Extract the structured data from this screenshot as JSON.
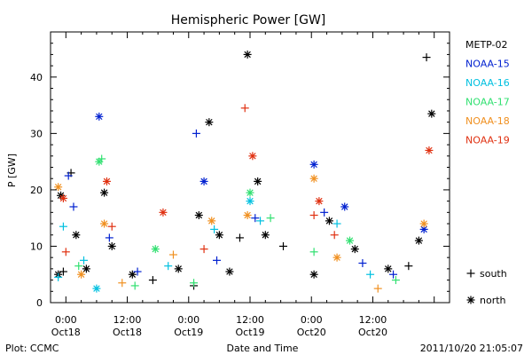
{
  "chart_data": {
    "type": "scatter",
    "title": "Hemispheric Power [GW]",
    "ylabel": "P [GW]",
    "xlabel": "Date and Time",
    "ylim": [
      0,
      48
    ],
    "xlim": [
      "2011-10-17T21:00",
      "2011-10-21T03:00"
    ],
    "y_ticks": [
      0,
      10,
      20,
      30,
      40
    ],
    "x_ticks": [
      {
        "x": "2011-10-18T00:00",
        "time": "0:00",
        "date": "Oct18"
      },
      {
        "x": "2011-10-18T12:00",
        "time": "12:00",
        "date": "Oct18"
      },
      {
        "x": "2011-10-19T00:00",
        "time": "0:00",
        "date": "Oct19"
      },
      {
        "x": "2011-10-19T12:00",
        "time": "12:00",
        "date": "Oct19"
      },
      {
        "x": "2011-10-20T00:00",
        "time": "0:00",
        "date": "Oct20"
      },
      {
        "x": "2011-10-20T12:00",
        "time": "12:00",
        "date": "Oct20"
      }
    ],
    "marker_legend": [
      {
        "symbol": "+",
        "label": "south",
        "marker": "plus"
      },
      {
        "symbol": "*",
        "label": "north",
        "marker": "star"
      }
    ],
    "series": [
      {
        "name": "METP-02",
        "color": "#000000",
        "points": [
          {
            "x": "2011-10-17T22:30",
            "y": 5,
            "m": "star"
          },
          {
            "x": "2011-10-17T23:00",
            "y": 19,
            "m": "star"
          },
          {
            "x": "2011-10-17T23:30",
            "y": 5.5,
            "m": "plus"
          },
          {
            "x": "2011-10-18T01:00",
            "y": 23,
            "m": "plus"
          },
          {
            "x": "2011-10-18T02:00",
            "y": 12,
            "m": "star"
          },
          {
            "x": "2011-10-18T04:00",
            "y": 6,
            "m": "star"
          },
          {
            "x": "2011-10-18T07:30",
            "y": 19.5,
            "m": "star"
          },
          {
            "x": "2011-10-18T09:00",
            "y": 10,
            "m": "star"
          },
          {
            "x": "2011-10-18T13:00",
            "y": 5,
            "m": "star"
          },
          {
            "x": "2011-10-18T17:00",
            "y": 4,
            "m": "plus"
          },
          {
            "x": "2011-10-18T22:00",
            "y": 6,
            "m": "star"
          },
          {
            "x": "2011-10-19T01:00",
            "y": 3,
            "m": "plus"
          },
          {
            "x": "2011-10-19T02:00",
            "y": 15.5,
            "m": "star"
          },
          {
            "x": "2011-10-19T04:00",
            "y": 32,
            "m": "star"
          },
          {
            "x": "2011-10-19T06:00",
            "y": 12,
            "m": "star"
          },
          {
            "x": "2011-10-19T08:00",
            "y": 5.5,
            "m": "star"
          },
          {
            "x": "2011-10-19T10:00",
            "y": 11.5,
            "m": "plus"
          },
          {
            "x": "2011-10-19T11:30",
            "y": 44,
            "m": "star"
          },
          {
            "x": "2011-10-19T13:30",
            "y": 21.5,
            "m": "star"
          },
          {
            "x": "2011-10-19T15:00",
            "y": 12,
            "m": "star"
          },
          {
            "x": "2011-10-19T18:30",
            "y": 10,
            "m": "plus"
          },
          {
            "x": "2011-10-20T00:30",
            "y": 5,
            "m": "star"
          },
          {
            "x": "2011-10-20T03:30",
            "y": 14.5,
            "m": "star"
          },
          {
            "x": "2011-10-20T08:30",
            "y": 9.5,
            "m": "star"
          },
          {
            "x": "2011-10-20T15:00",
            "y": 6,
            "m": "star"
          },
          {
            "x": "2011-10-20T19:00",
            "y": 6.5,
            "m": "plus"
          },
          {
            "x": "2011-10-20T21:00",
            "y": 11,
            "m": "star"
          },
          {
            "x": "2011-10-20T22:30",
            "y": 43.5,
            "m": "plus"
          },
          {
            "x": "2011-10-20T23:30",
            "y": 33.5,
            "m": "star"
          }
        ]
      },
      {
        "name": "NOAA-15",
        "color": "#0020d0",
        "points": [
          {
            "x": "2011-10-18T00:30",
            "y": 22.5,
            "m": "plus"
          },
          {
            "x": "2011-10-18T01:30",
            "y": 17,
            "m": "plus"
          },
          {
            "x": "2011-10-18T06:30",
            "y": 33,
            "m": "star"
          },
          {
            "x": "2011-10-18T08:30",
            "y": 11.5,
            "m": "plus"
          },
          {
            "x": "2011-10-18T14:00",
            "y": 5.5,
            "m": "plus"
          },
          {
            "x": "2011-10-19T01:30",
            "y": 30,
            "m": "plus"
          },
          {
            "x": "2011-10-19T03:00",
            "y": 21.5,
            "m": "star"
          },
          {
            "x": "2011-10-19T05:30",
            "y": 7.5,
            "m": "plus"
          },
          {
            "x": "2011-10-19T13:00",
            "y": 15,
            "m": "plus"
          },
          {
            "x": "2011-10-20T00:30",
            "y": 24.5,
            "m": "star"
          },
          {
            "x": "2011-10-20T02:30",
            "y": 16,
            "m": "plus"
          },
          {
            "x": "2011-10-20T06:30",
            "y": 17,
            "m": "star"
          },
          {
            "x": "2011-10-20T10:00",
            "y": 7,
            "m": "plus"
          },
          {
            "x": "2011-10-20T16:00",
            "y": 5,
            "m": "plus"
          },
          {
            "x": "2011-10-20T22:00",
            "y": 13,
            "m": "star"
          }
        ]
      },
      {
        "name": "NOAA-16",
        "color": "#00c0e0",
        "points": [
          {
            "x": "2011-10-17T22:30",
            "y": 4.5,
            "m": "plus"
          },
          {
            "x": "2011-10-17T23:30",
            "y": 13.5,
            "m": "plus"
          },
          {
            "x": "2011-10-18T03:30",
            "y": 7.5,
            "m": "plus"
          },
          {
            "x": "2011-10-18T06:00",
            "y": 2.5,
            "m": "star"
          },
          {
            "x": "2011-10-18T20:00",
            "y": 6.5,
            "m": "plus"
          },
          {
            "x": "2011-10-19T05:00",
            "y": 13,
            "m": "plus"
          },
          {
            "x": "2011-10-19T12:00",
            "y": 18,
            "m": "star"
          },
          {
            "x": "2011-10-19T14:00",
            "y": 14.5,
            "m": "plus"
          },
          {
            "x": "2011-10-20T05:00",
            "y": 14,
            "m": "plus"
          },
          {
            "x": "2011-10-20T11:30",
            "y": 5,
            "m": "plus"
          }
        ]
      },
      {
        "name": "NOAA-17",
        "color": "#30e070",
        "points": [
          {
            "x": "2011-10-18T02:30",
            "y": 6.5,
            "m": "plus"
          },
          {
            "x": "2011-10-18T06:30",
            "y": 25,
            "m": "star"
          },
          {
            "x": "2011-10-18T07:00",
            "y": 25.5,
            "m": "plus"
          },
          {
            "x": "2011-10-18T13:30",
            "y": 3,
            "m": "plus"
          },
          {
            "x": "2011-10-18T17:30",
            "y": 9.5,
            "m": "star"
          },
          {
            "x": "2011-10-19T01:00",
            "y": 3.5,
            "m": "plus"
          },
          {
            "x": "2011-10-19T12:00",
            "y": 19.5,
            "m": "star"
          },
          {
            "x": "2011-10-19T16:00",
            "y": 15,
            "m": "plus"
          },
          {
            "x": "2011-10-20T00:30",
            "y": 9,
            "m": "plus"
          },
          {
            "x": "2011-10-20T07:30",
            "y": 11,
            "m": "star"
          },
          {
            "x": "2011-10-20T16:30",
            "y": 4,
            "m": "plus"
          }
        ]
      },
      {
        "name": "NOAA-18",
        "color": "#f09020",
        "points": [
          {
            "x": "2011-10-17T22:30",
            "y": 20.5,
            "m": "star"
          },
          {
            "x": "2011-10-18T03:00",
            "y": 5,
            "m": "star"
          },
          {
            "x": "2011-10-18T07:30",
            "y": 14,
            "m": "star"
          },
          {
            "x": "2011-10-18T11:00",
            "y": 3.5,
            "m": "plus"
          },
          {
            "x": "2011-10-18T21:00",
            "y": 8.5,
            "m": "plus"
          },
          {
            "x": "2011-10-19T04:30",
            "y": 14.5,
            "m": "star"
          },
          {
            "x": "2011-10-19T11:30",
            "y": 15.5,
            "m": "star"
          },
          {
            "x": "2011-10-20T00:30",
            "y": 22,
            "m": "star"
          },
          {
            "x": "2011-10-20T05:00",
            "y": 8,
            "m": "star"
          },
          {
            "x": "2011-10-20T13:00",
            "y": 2.5,
            "m": "plus"
          },
          {
            "x": "2011-10-20T22:00",
            "y": 14,
            "m": "star"
          }
        ]
      },
      {
        "name": "NOAA-19",
        "color": "#e03010",
        "points": [
          {
            "x": "2011-10-17T23:30",
            "y": 18.5,
            "m": "star"
          },
          {
            "x": "2011-10-18T00:00",
            "y": 9,
            "m": "plus"
          },
          {
            "x": "2011-10-18T08:00",
            "y": 21.5,
            "m": "star"
          },
          {
            "x": "2011-10-18T09:00",
            "y": 13.5,
            "m": "plus"
          },
          {
            "x": "2011-10-18T19:00",
            "y": 16,
            "m": "star"
          },
          {
            "x": "2011-10-19T03:00",
            "y": 9.5,
            "m": "plus"
          },
          {
            "x": "2011-10-19T11:00",
            "y": 34.5,
            "m": "plus"
          },
          {
            "x": "2011-10-19T12:30",
            "y": 26,
            "m": "star"
          },
          {
            "x": "2011-10-20T00:30",
            "y": 15.5,
            "m": "plus"
          },
          {
            "x": "2011-10-20T01:30",
            "y": 18,
            "m": "star"
          },
          {
            "x": "2011-10-20T04:30",
            "y": 12,
            "m": "plus"
          },
          {
            "x": "2011-10-20T23:00",
            "y": 27,
            "m": "star"
          }
        ]
      }
    ]
  },
  "footer": {
    "plot_credit": "Plot: CCMC",
    "timestamp": "2011/10/20 21:05:07"
  }
}
